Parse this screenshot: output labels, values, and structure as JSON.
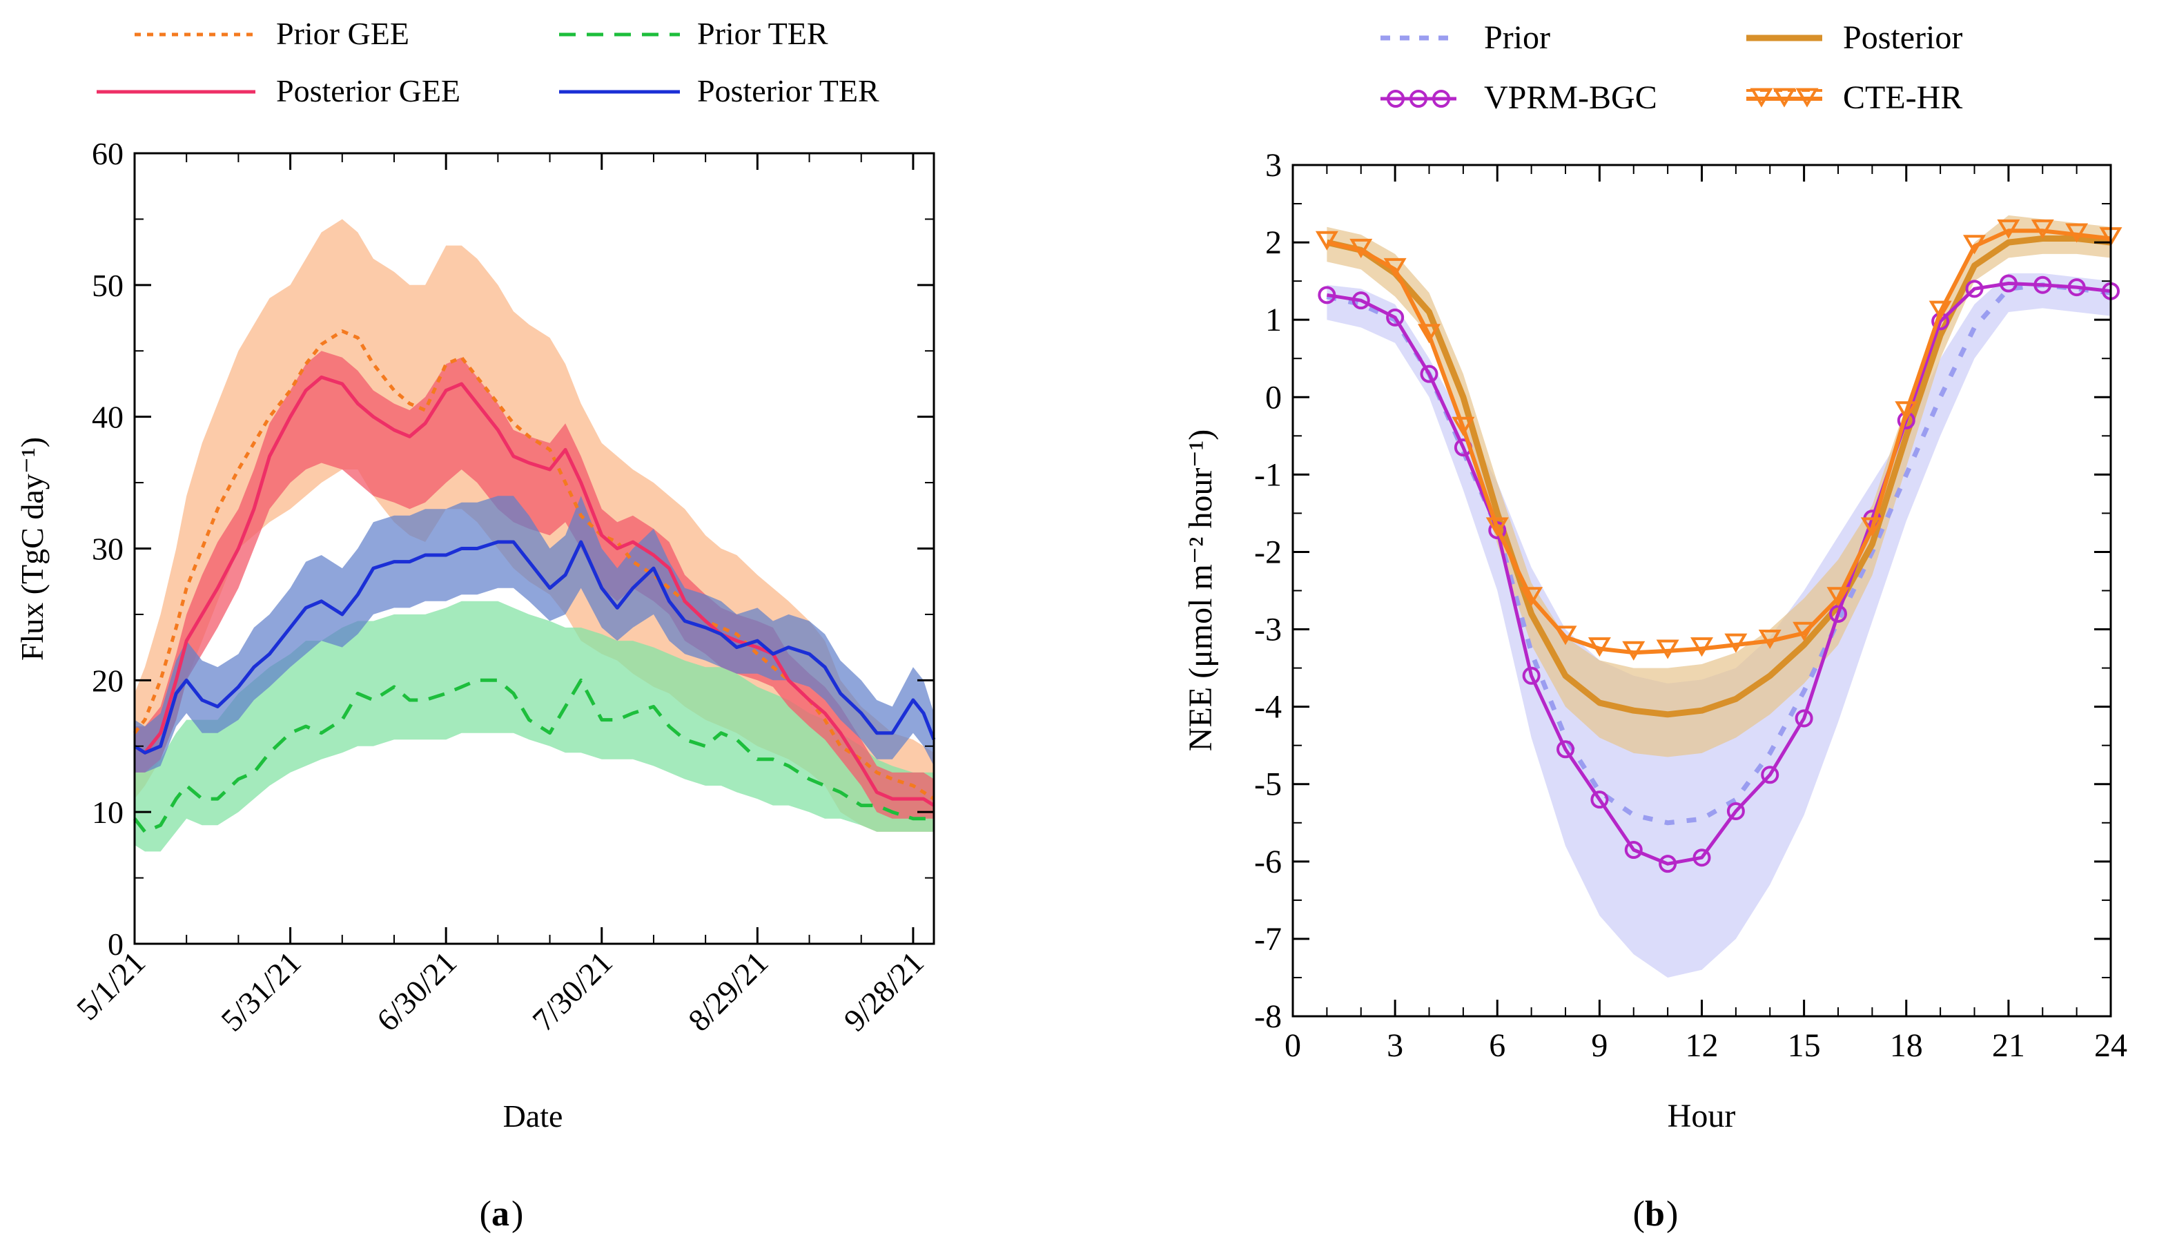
{
  "panels": {
    "a": {
      "caption": "a"
    },
    "b": {
      "caption": "b"
    }
  },
  "colors": {
    "prior_gee": "#F47A1F",
    "posterior_gee": "#EE2F66",
    "prior_ter": "#1DBE3C",
    "posterior_ter": "#1B2FD6",
    "gee_prior_band": "#FBC29A",
    "gee_post_band": "#F35C6C",
    "ter_prior_band": "#86E3A6",
    "ter_post_band": "#5F7FCB",
    "prior_b": "#9A9DF0",
    "prior_b_band": "#D9DAFA",
    "posterior_b": "#D8902A",
    "posterior_b_band": "#E7C48F",
    "vprm": "#B526C8",
    "cte": "#F7821E"
  },
  "chart_data": [
    {
      "id": "a",
      "type": "line",
      "title": "",
      "xlabel": "Date",
      "ylabel": "Flux (TgC day⁻¹)",
      "xlim": [
        0,
        154
      ],
      "ylim": [
        0,
        60
      ],
      "yticks": [
        0,
        10,
        20,
        30,
        40,
        50,
        60
      ],
      "xticks": [
        0,
        30,
        60,
        90,
        120,
        150
      ],
      "xtick_labels": [
        "5/1/21",
        "5/31/21",
        "6/30/21",
        "7/30/21",
        "8/29/21",
        "9/28/21"
      ],
      "legend": [
        "Prior GEE",
        "Prior TER",
        "Posterior GEE",
        "Posterior TER"
      ],
      "legend_position": "top",
      "x": [
        0,
        2,
        5,
        8,
        10,
        13,
        16,
        20,
        23,
        26,
        30,
        33,
        36,
        40,
        43,
        46,
        50,
        53,
        56,
        60,
        63,
        66,
        70,
        73,
        76,
        80,
        83,
        86,
        90,
        93,
        96,
        100,
        103,
        106,
        110,
        113,
        116,
        120,
        123,
        126,
        130,
        133,
        136,
        140,
        143,
        146,
        150,
        152,
        154
      ],
      "series": [
        {
          "name": "Prior GEE",
          "style": "dotted",
          "values": [
            16,
            17,
            20,
            24,
            27,
            30,
            33,
            36,
            38,
            40,
            42,
            44,
            45.5,
            46.5,
            46,
            44,
            42,
            41,
            40.5,
            44,
            44.5,
            43,
            41,
            39.5,
            38.5,
            37.5,
            35,
            32.5,
            31,
            30.5,
            29,
            28,
            27,
            26,
            24.5,
            24,
            23.5,
            22,
            21,
            20,
            18.5,
            17,
            15,
            14,
            13,
            12.5,
            12,
            11.5,
            11
          ],
          "band_low": [
            11,
            12,
            14,
            17,
            20,
            23,
            26,
            30,
            31,
            32,
            33,
            34,
            35,
            36,
            36,
            34,
            32,
            31,
            30.5,
            33,
            33,
            32,
            30,
            28.5,
            27.5,
            26.5,
            25,
            23,
            22,
            21.5,
            20.5,
            19.5,
            19,
            18,
            17,
            16.5,
            16,
            15,
            14.5,
            14,
            13,
            12,
            10,
            9,
            8.5,
            8.5,
            8.5,
            8.5,
            8.5
          ],
          "band_high": [
            19,
            21,
            25,
            30,
            34,
            38,
            41,
            45,
            47,
            49,
            50,
            52,
            54,
            55,
            54,
            52,
            51,
            50,
            50,
            53,
            53,
            52,
            50,
            48,
            47,
            46,
            44,
            41,
            38,
            37,
            36,
            35,
            34,
            33,
            31,
            30,
            29.5,
            28,
            27,
            26,
            24.5,
            23,
            20,
            18,
            17,
            16,
            15.5,
            15,
            14.5
          ]
        },
        {
          "name": "Prior TER",
          "style": "dashed",
          "values": [
            9.5,
            8.5,
            9,
            11,
            12,
            11,
            11,
            12.5,
            13,
            14.5,
            16,
            16.5,
            16,
            17,
            19,
            18.5,
            19.5,
            18.5,
            18.5,
            19,
            19.5,
            20,
            20,
            19,
            17,
            16,
            18,
            20,
            17,
            17,
            17.5,
            18,
            16.5,
            15.5,
            15,
            16,
            15.5,
            14,
            14,
            13.5,
            12.5,
            12,
            11.5,
            10.5,
            10.5,
            10,
            9.5,
            9.5,
            9.5
          ],
          "band_low": [
            7.5,
            7,
            7,
            8.5,
            9.5,
            9,
            9,
            10,
            11,
            12,
            13,
            13.5,
            14,
            14.5,
            15,
            15,
            15.5,
            15.5,
            15.5,
            15.5,
            16,
            16,
            16,
            16,
            15.5,
            15,
            14.5,
            14.5,
            14,
            14,
            14,
            13.5,
            13,
            12.5,
            12,
            12,
            11.5,
            11,
            10.5,
            10.5,
            10,
            9.5,
            9.5,
            9,
            8.5,
            8.5,
            8.5,
            8.5,
            8.5
          ],
          "band_high": [
            13,
            13,
            14,
            16,
            17,
            17,
            17,
            19,
            20,
            21,
            22,
            23,
            23,
            24,
            24.5,
            24.5,
            25,
            25,
            25,
            25.5,
            26,
            26,
            26,
            25.5,
            25,
            24.5,
            24,
            24,
            23.5,
            23,
            23,
            22.5,
            22,
            21.5,
            21,
            21,
            20.5,
            19.5,
            19,
            18.5,
            17.5,
            17,
            16,
            15,
            14,
            13.5,
            13,
            13,
            13
          ]
        },
        {
          "name": "Posterior GEE",
          "style": "solid",
          "values": [
            15,
            14.5,
            16,
            20,
            23,
            25,
            27,
            30,
            33,
            37,
            40,
            42,
            43,
            42.5,
            41,
            40,
            39,
            38.5,
            39.5,
            42,
            42.5,
            41,
            39,
            37,
            36.5,
            36,
            37.5,
            35,
            31,
            30,
            30.5,
            29.5,
            28.5,
            26,
            24.5,
            23.5,
            23,
            22.5,
            22,
            20,
            18.5,
            17.5,
            16,
            13.5,
            11.5,
            11,
            11,
            11,
            10.5
          ],
          "band_low": [
            13,
            13,
            14,
            17,
            20,
            22,
            24,
            27,
            30,
            33,
            35,
            36,
            36.5,
            36,
            35,
            34,
            33.5,
            33,
            33.5,
            35,
            36,
            35,
            33,
            32,
            31.5,
            31,
            32,
            30,
            27,
            26,
            27,
            26,
            25,
            23,
            22,
            21,
            20.5,
            20,
            19.5,
            18,
            16.5,
            15.5,
            14,
            12,
            10,
            9.5,
            9.5,
            9.5,
            9.5
          ],
          "band_high": [
            16.5,
            16.5,
            18,
            22,
            25,
            28,
            30.5,
            33,
            36,
            39.5,
            42,
            44,
            45,
            44.5,
            43.5,
            42,
            41,
            40.5,
            41.5,
            44,
            44.5,
            43,
            41,
            39,
            38.5,
            38,
            39.5,
            37,
            33,
            32,
            32.5,
            31.5,
            30.5,
            28,
            26.5,
            25.5,
            25,
            24.5,
            24,
            22,
            20.5,
            19.5,
            18,
            15.5,
            13.5,
            13,
            13,
            13,
            12.5
          ]
        },
        {
          "name": "Posterior TER",
          "style": "solid",
          "values": [
            15,
            14.5,
            15,
            19,
            20,
            18.5,
            18,
            19.5,
            21,
            22,
            24,
            25.5,
            26,
            25,
            26.5,
            28.5,
            29,
            29,
            29.5,
            29.5,
            30,
            30,
            30.5,
            30.5,
            29,
            27,
            28,
            30.5,
            27,
            25.5,
            27,
            28.5,
            26,
            24.5,
            24,
            23.5,
            22.5,
            23,
            22,
            22.5,
            22,
            21,
            19,
            17.5,
            16,
            16,
            18.5,
            17.5,
            15.5
          ],
          "band_low": [
            13,
            13,
            13.5,
            16.5,
            17.5,
            16,
            16,
            17,
            18.5,
            19.5,
            21,
            22,
            23,
            22.5,
            23.5,
            25,
            25.5,
            25.5,
            26,
            26,
            26.5,
            26.5,
            27,
            27,
            26,
            24.5,
            25,
            27,
            24,
            23,
            24,
            25,
            23,
            22,
            21.5,
            21,
            20.5,
            20.5,
            20,
            20,
            19.5,
            18.5,
            17,
            15.5,
            14,
            14,
            16,
            15,
            13.5
          ],
          "band_high": [
            17,
            16.5,
            17.5,
            21.5,
            23,
            21.5,
            21,
            22,
            24,
            25,
            27,
            29,
            29.5,
            28.5,
            30,
            32,
            32.5,
            32.5,
            33,
            33,
            33.5,
            33.5,
            34,
            34,
            32.5,
            30,
            31,
            34,
            30,
            28.5,
            30,
            31.5,
            29,
            27,
            26.5,
            26,
            25,
            25.5,
            24.5,
            25,
            24.5,
            23.5,
            21.5,
            20,
            18.5,
            18,
            21,
            20,
            17.5
          ]
        }
      ]
    },
    {
      "id": "b",
      "type": "line",
      "title": "",
      "xlabel": "Hour",
      "ylabel": "NEE (μmol m⁻² hour⁻¹)",
      "xlim": [
        0,
        24
      ],
      "ylim": [
        -8,
        3
      ],
      "xticks": [
        0,
        3,
        6,
        9,
        12,
        15,
        18,
        21,
        24
      ],
      "yticks": [
        -8,
        -7,
        -6,
        -5,
        -4,
        -3,
        -2,
        -1,
        0,
        1,
        2,
        3
      ],
      "legend": [
        "Prior",
        "Posterior",
        "VPRM-BGC",
        "CTE-HR"
      ],
      "legend_position": "top",
      "x": [
        1,
        2,
        3,
        4,
        5,
        6,
        7,
        8,
        9,
        10,
        11,
        12,
        13,
        14,
        15,
        16,
        17,
        18,
        19,
        20,
        21,
        22,
        23,
        24
      ],
      "series": [
        {
          "name": "Prior",
          "style": "dashed",
          "values": [
            1.3,
            1.2,
            1.0,
            0.3,
            -0.7,
            -1.7,
            -3.3,
            -4.4,
            -5.1,
            -5.4,
            -5.5,
            -5.45,
            -5.2,
            -4.6,
            -3.8,
            -2.9,
            -2.0,
            -1.0,
            0.0,
            0.9,
            1.4,
            1.45,
            1.4,
            1.35
          ],
          "band_low": [
            1.0,
            0.9,
            0.7,
            0.0,
            -1.2,
            -2.5,
            -4.4,
            -5.8,
            -6.7,
            -7.2,
            -7.5,
            -7.4,
            -7.0,
            -6.3,
            -5.4,
            -4.2,
            -2.9,
            -1.6,
            -0.5,
            0.5,
            1.1,
            1.15,
            1.1,
            1.05
          ],
          "band_high": [
            1.45,
            1.4,
            1.2,
            0.5,
            -0.3,
            -1.1,
            -2.2,
            -3.0,
            -3.4,
            -3.6,
            -3.7,
            -3.65,
            -3.5,
            -3.1,
            -2.5,
            -1.8,
            -1.1,
            -0.4,
            0.5,
            1.2,
            1.6,
            1.6,
            1.55,
            1.5
          ]
        },
        {
          "name": "Posterior",
          "style": "solid",
          "values": [
            2.0,
            1.9,
            1.6,
            1.1,
            0.0,
            -1.5,
            -2.8,
            -3.6,
            -3.95,
            -4.05,
            -4.1,
            -4.05,
            -3.9,
            -3.6,
            -3.2,
            -2.7,
            -1.9,
            -0.5,
            0.8,
            1.7,
            2.0,
            2.05,
            2.05,
            2.0
          ],
          "band_low": [
            1.75,
            1.65,
            1.3,
            0.8,
            -0.4,
            -1.9,
            -3.2,
            -4.0,
            -4.4,
            -4.6,
            -4.65,
            -4.6,
            -4.4,
            -4.1,
            -3.7,
            -3.2,
            -2.3,
            -0.9,
            0.5,
            1.5,
            1.8,
            1.85,
            1.85,
            1.8
          ],
          "band_high": [
            2.2,
            2.1,
            1.85,
            1.35,
            0.3,
            -1.1,
            -2.4,
            -3.1,
            -3.4,
            -3.5,
            -3.5,
            -3.45,
            -3.3,
            -3.0,
            -2.6,
            -2.1,
            -1.4,
            -0.1,
            1.1,
            2.0,
            2.35,
            2.3,
            2.25,
            2.2
          ]
        },
        {
          "name": "VPRM-BGC",
          "style": "solid-circle",
          "values": [
            1.32,
            1.25,
            1.03,
            0.3,
            -0.65,
            -1.72,
            -3.6,
            -4.55,
            -5.2,
            -5.85,
            -6.03,
            -5.95,
            -5.35,
            -4.88,
            -4.15,
            -2.8,
            -1.57,
            -0.3,
            0.98,
            1.4,
            1.47,
            1.45,
            1.42,
            1.37
          ]
        },
        {
          "name": "CTE-HR",
          "style": "solid-triangle",
          "values": [
            2.0,
            1.9,
            1.65,
            0.8,
            -0.4,
            -1.7,
            -2.6,
            -3.1,
            -3.25,
            -3.3,
            -3.28,
            -3.25,
            -3.2,
            -3.15,
            -3.05,
            -2.6,
            -1.7,
            -0.2,
            1.1,
            1.95,
            2.15,
            2.15,
            2.1,
            2.05
          ]
        }
      ]
    }
  ]
}
